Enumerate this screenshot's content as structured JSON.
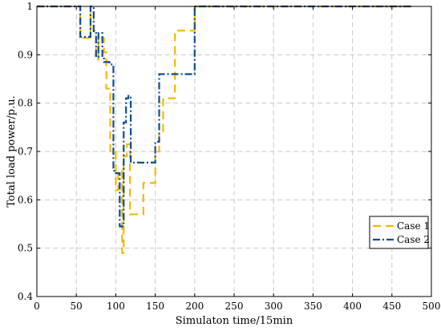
{
  "chart_data": {
    "type": "line",
    "title": "",
    "xlabel": "Simulaton time/15min",
    "ylabel": "Total load power/p.u.",
    "xlim": [
      0,
      500
    ],
    "ylim": [
      0.4,
      1.0
    ],
    "xticks": [
      0,
      50,
      100,
      150,
      200,
      250,
      300,
      350,
      400,
      450,
      500
    ],
    "yticks": [
      0.4,
      0.5,
      0.6,
      0.7,
      0.8,
      0.9,
      1.0
    ],
    "xtick_labels": [
      "0",
      "50",
      "100",
      "150",
      "200",
      "250",
      "300",
      "350",
      "400",
      "450",
      "500"
    ],
    "ytick_labels": [
      "0.4",
      "0.5",
      "0.6",
      "0.7",
      "0.8",
      "0.9",
      "1"
    ],
    "grid": true,
    "legend_position": "bottom-right",
    "series": [
      {
        "name": "Case 1",
        "color": "#F5B800",
        "style": "dashed",
        "x": [
          0,
          55,
          55,
          68,
          68,
          72,
          72,
          75,
          75,
          78,
          78,
          85,
          85,
          88,
          88,
          93,
          93,
          100,
          100,
          103,
          103,
          108,
          108,
          110,
          110,
          114,
          114,
          118,
          118,
          122,
          122,
          135,
          135,
          140,
          140,
          150,
          150,
          155,
          155,
          160,
          160,
          165,
          165,
          175,
          175,
          185,
          185,
          200,
          200,
          475
        ],
        "y": [
          1.0,
          1.0,
          0.935,
          0.935,
          0.99,
          0.99,
          0.95,
          0.95,
          0.89,
          0.89,
          0.935,
          0.935,
          0.905,
          0.905,
          0.83,
          0.83,
          0.7,
          0.7,
          0.62,
          0.62,
          0.66,
          0.66,
          0.49,
          0.49,
          0.69,
          0.69,
          0.715,
          0.715,
          0.57,
          0.57,
          0.57,
          0.57,
          0.635,
          0.635,
          0.635,
          0.635,
          0.7,
          0.7,
          0.74,
          0.74,
          0.81,
          0.81,
          0.81,
          0.81,
          0.95,
          0.95,
          0.95,
          0.95,
          1.0,
          1.0
        ]
      },
      {
        "name": "Case 2",
        "color": "#0E4D92",
        "style": "dashdot",
        "x": [
          0,
          55,
          55,
          68,
          68,
          72,
          72,
          75,
          75,
          78,
          78,
          83,
          83,
          85,
          85,
          92,
          92,
          97,
          97,
          100,
          100,
          105,
          105,
          110,
          110,
          113,
          113,
          116,
          116,
          119,
          119,
          120,
          120,
          150,
          150,
          155,
          155,
          160,
          160,
          200,
          200,
          475
        ],
        "y": [
          1.0,
          1.0,
          0.937,
          0.937,
          1.0,
          1.0,
          0.945,
          0.945,
          0.895,
          0.895,
          0.945,
          0.945,
          0.895,
          0.895,
          0.885,
          0.885,
          0.88,
          0.88,
          0.66,
          0.66,
          0.655,
          0.655,
          0.545,
          0.545,
          0.76,
          0.76,
          0.81,
          0.81,
          0.815,
          0.815,
          0.677,
          0.677,
          0.677,
          0.677,
          0.72,
          0.72,
          0.86,
          0.86,
          0.86,
          0.86,
          1.0,
          1.0
        ]
      }
    ]
  }
}
